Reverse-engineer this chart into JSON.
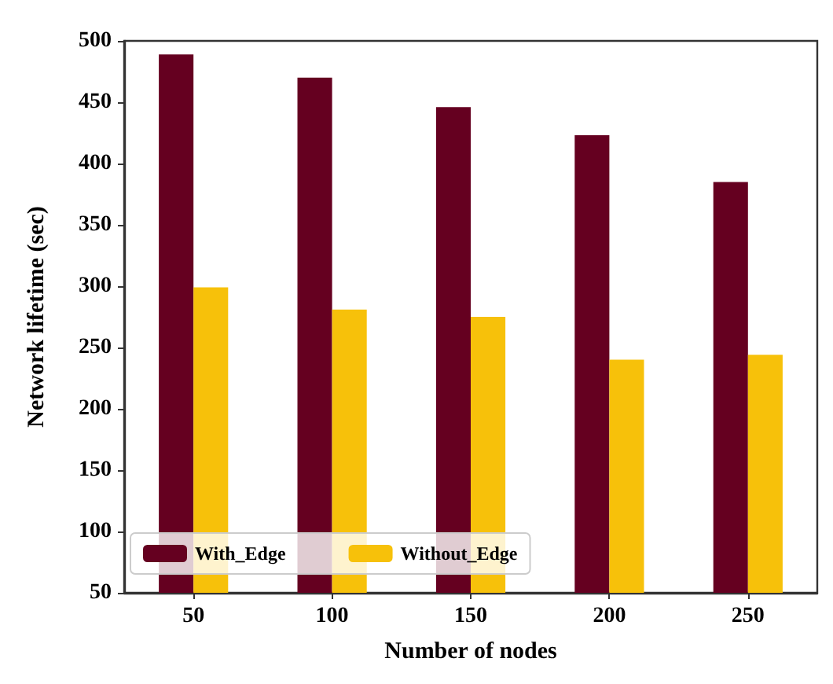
{
  "chart_data": {
    "type": "bar",
    "xlabel": "Number of nodes",
    "ylabel": "Network lifetime (sec)",
    "categories": [
      "50",
      "100",
      "150",
      "200",
      "250"
    ],
    "series": [
      {
        "name": "With_Edge",
        "color": "#650020",
        "values": [
          489,
          470,
          446,
          423,
          385
        ]
      },
      {
        "name": "Without_Edge",
        "color": "#f7c10a",
        "values": [
          299,
          281,
          275,
          240,
          244
        ]
      }
    ],
    "ylim": [
      50,
      500
    ],
    "yticks": [
      50,
      100,
      150,
      200,
      250,
      300,
      350,
      400,
      450,
      500
    ],
    "grid": false,
    "legend": "bottom left"
  }
}
